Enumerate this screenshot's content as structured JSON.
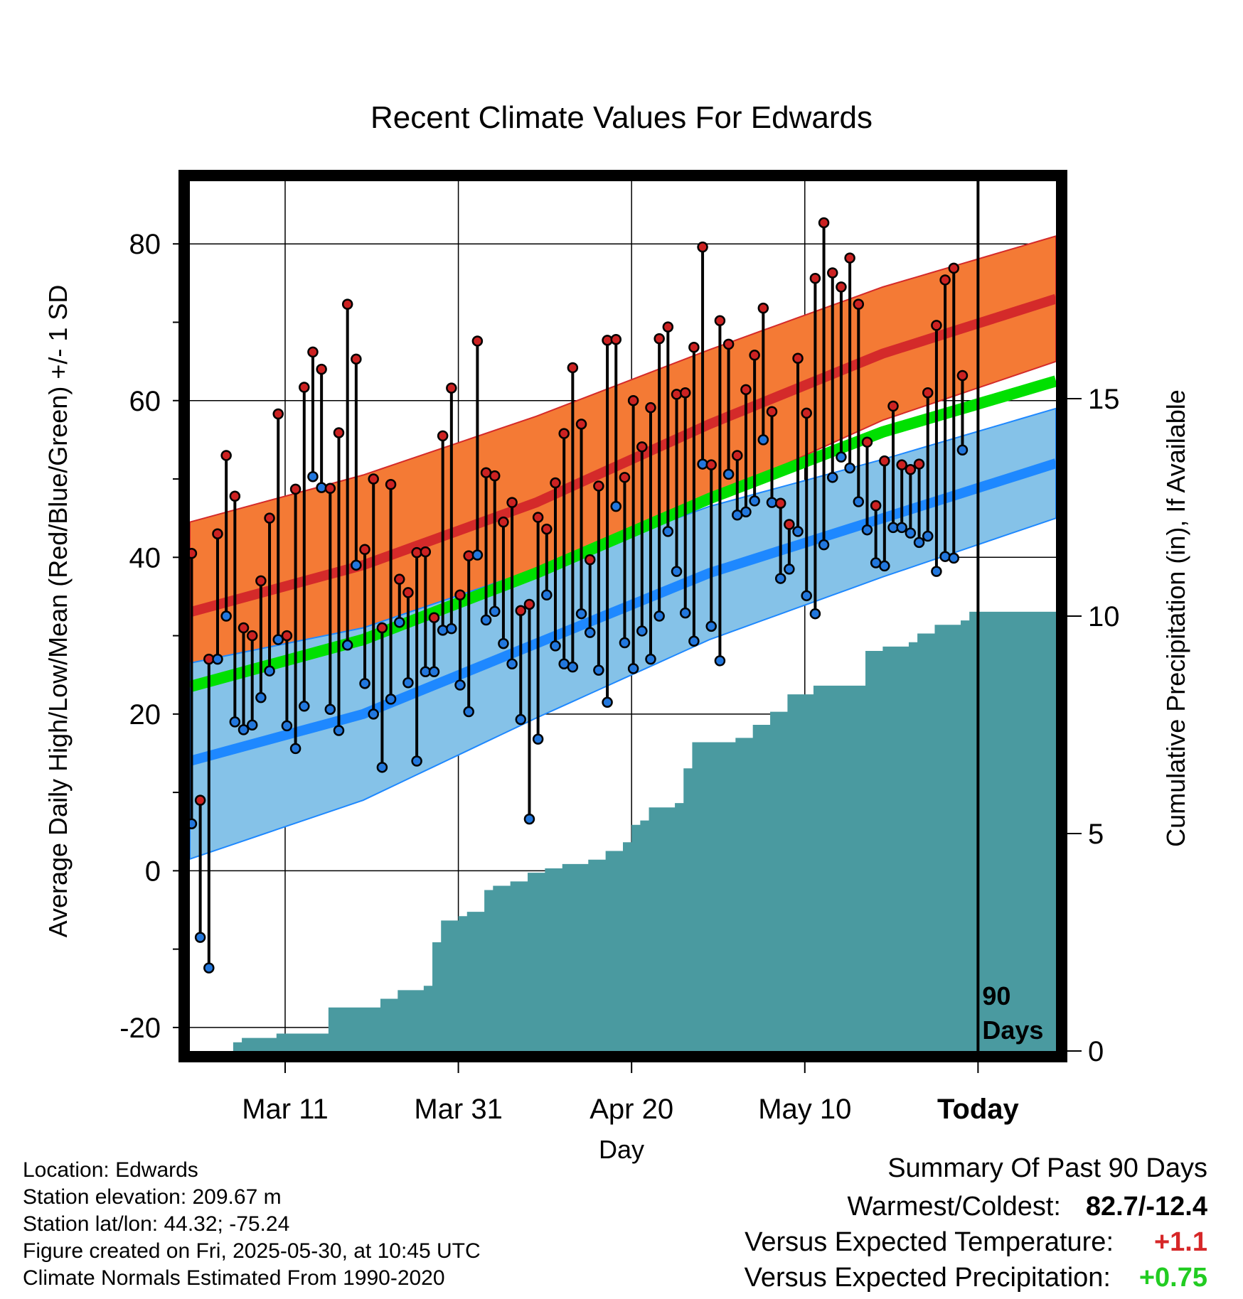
{
  "chart_data": {
    "type": "line",
    "title": "Recent Climate Values For Edwards",
    "xlabel": "Day",
    "ylabel": "Average Daily High/Low/Mean (Red/Blue/Green) +/- 1 SD",
    "y2label": "Cumulative Precipitation (in), If Available",
    "ylim": [
      -23,
      88
    ],
    "y2lim": [
      0,
      20
    ],
    "yticks": [
      -20,
      0,
      20,
      40,
      60,
      80
    ],
    "y2ticks": [
      0,
      5,
      10,
      15
    ],
    "xlim": [
      0,
      100
    ],
    "xticks": [
      {
        "day": 11,
        "label": "Mar 11"
      },
      {
        "day": 31,
        "label": "Mar 31"
      },
      {
        "day": 51,
        "label": "Apr 20"
      },
      {
        "day": 71,
        "label": "May 10"
      },
      {
        "day": 91,
        "label": "Today"
      }
    ],
    "today_day": 91,
    "today_label": [
      "90",
      "Days"
    ],
    "normals": {
      "days": [
        0,
        20,
        40,
        60,
        80,
        100
      ],
      "high_mean": [
        33,
        39,
        47,
        57,
        66,
        73
      ],
      "high_sd": [
        11.5,
        11.5,
        11,
        9.5,
        8.5,
        8
      ],
      "low_mean": [
        14,
        20,
        29,
        38,
        45,
        52
      ],
      "low_sd": [
        12.5,
        11,
        9.5,
        8.5,
        7.5,
        7
      ],
      "avg_mean": [
        23.5,
        29.5,
        38,
        47.5,
        56,
        62.5
      ]
    },
    "series": [
      {
        "name": "Daily High",
        "values": [
          40.5,
          9,
          27,
          43,
          53,
          47.8,
          31,
          30,
          37,
          45,
          58.3,
          30,
          48.7,
          61.7,
          66.2,
          64,
          48.8,
          55.9,
          72.3,
          65.3,
          41,
          50,
          31,
          49.3,
          37.2,
          35.5,
          40.6,
          40.7,
          32.3,
          55.5,
          61.6,
          35.2,
          40.2,
          67.6,
          50.8,
          50.4,
          44.5,
          47,
          33.2,
          34,
          45.1,
          43.6,
          49.5,
          55.8,
          64.2,
          57,
          39.7,
          49.1,
          67.7,
          67.8,
          50.2,
          60,
          54.1,
          59.1,
          67.9,
          69.4,
          60.8,
          61,
          66.8,
          79.6,
          51.8,
          70.2,
          67.2,
          53,
          61.4,
          65.8,
          71.8,
          58.6,
          46.9,
          44.2,
          65.4,
          58.4,
          75.6,
          82.7,
          76.3,
          74.5,
          78.2,
          72.3,
          54.7,
          46.6,
          52.3,
          59.3,
          51.8,
          51.2,
          51.9,
          61,
          69.6,
          75.4,
          76.9,
          63.2
        ]
      },
      {
        "name": "Daily Low",
        "values": [
          6,
          -8.5,
          -12.4,
          27,
          32.5,
          19,
          18,
          18.6,
          22.1,
          25.5,
          29.5,
          18.5,
          15.6,
          21,
          50.3,
          48.9,
          20.6,
          17.9,
          28.8,
          39,
          23.9,
          20,
          13.2,
          21.9,
          31.7,
          24,
          14,
          25.4,
          25.4,
          30.7,
          30.9,
          23.7,
          20.3,
          40.3,
          32,
          33.1,
          29,
          26.4,
          19.3,
          6.6,
          16.8,
          35.2,
          28.7,
          26.4,
          26,
          32.8,
          30.4,
          25.6,
          21.5,
          46.5,
          29.1,
          25.8,
          30.6,
          27,
          32.5,
          43.3,
          38.2,
          32.9,
          29.3,
          51.9,
          31.2,
          26.8,
          50.6,
          45.4,
          45.8,
          47.2,
          55,
          47,
          37.3,
          38.5,
          43.3,
          35.1,
          32.8,
          41.6,
          50.2,
          52.8,
          51.4,
          47.1,
          43.5,
          39.3,
          38.9,
          43.8,
          43.8,
          43.1,
          41.9,
          42.7,
          38.2,
          40.1,
          39.9,
          53.7
        ]
      },
      {
        "name": "Cumulative Precipitation (in)",
        "x": [
          4,
          5,
          6,
          8,
          10,
          15,
          16,
          20,
          22,
          24,
          27,
          28,
          29,
          31,
          32,
          34,
          35,
          37,
          39,
          41,
          43,
          46,
          48,
          50,
          51,
          52,
          53,
          56,
          57,
          58,
          63,
          65,
          67,
          69,
          72,
          75,
          77,
          78,
          80,
          83,
          84,
          86,
          89,
          90,
          100
        ],
        "values": [
          0,
          0.2,
          0.3,
          0.3,
          0.4,
          0.4,
          1,
          1,
          1.2,
          1.4,
          1.5,
          2.5,
          3,
          3.1,
          3.2,
          3.7,
          3.8,
          3.9,
          4.1,
          4.2,
          4.3,
          4.4,
          4.6,
          4.8,
          5.2,
          5.3,
          5.6,
          5.7,
          6.5,
          7.1,
          7.2,
          7.5,
          7.8,
          8.2,
          8.4,
          8.4,
          8.4,
          9.2,
          9.3,
          9.4,
          9.6,
          9.8,
          9.9,
          10.1,
          10.1
        ]
      }
    ]
  },
  "info": {
    "location": "Location: Edwards",
    "elevation": "Station elevation: 209.67 m",
    "latlon": "Station lat/lon: 44.32; -75.24",
    "created": "Figure created on Fri, 2025-05-30, at 10:45 UTC",
    "normals": "Climate Normals Estimated From 1990-2020"
  },
  "summary": {
    "heading": "Summary Of Past 90 Days",
    "warm_cold_label": "Warmest/Coldest:",
    "warm_cold_value": "82.7/-12.4",
    "temp_label": "Versus Expected Temperature:",
    "temp_value": "+1.1",
    "temp_color": "#d62728",
    "precip_label": "Versus Expected Precipitation:",
    "precip_value": "+0.75",
    "precip_color": "#22cc22"
  },
  "colors": {
    "high_band": "#f47a35",
    "high_line": "#d42a2a",
    "low_band": "#85c2e8",
    "low_line": "#1e88ff",
    "mean_line": "#00e000",
    "precip_fill": "#4a9aa0",
    "high_dot": "#cc2222",
    "low_dot": "#2277dd"
  }
}
